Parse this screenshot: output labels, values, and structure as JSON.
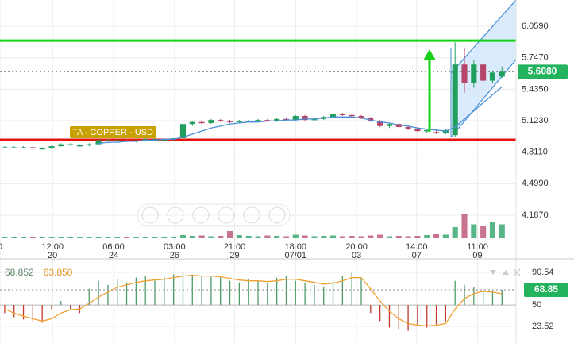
{
  "chart_data": {
    "type": "candlestick",
    "title": "TA - COPPER - USD",
    "title_color": "#c7a100",
    "xlim": [
      -0.5,
      54.5
    ],
    "xticks": [
      {
        "value": -0.5,
        "label": "0"
      },
      {
        "value": 5.1,
        "label": "12:00",
        "sublabel": "20"
      },
      {
        "value": 11.6,
        "label": "06:00",
        "sublabel": "24"
      },
      {
        "value": 18.1,
        "label": "03:00",
        "sublabel": "26"
      },
      {
        "value": 24.5,
        "label": "21:00",
        "sublabel": "29"
      },
      {
        "value": 31,
        "label": "18:00",
        "sublabel": "07/01"
      },
      {
        "value": 37.5,
        "label": "20:00",
        "sublabel": "03"
      },
      {
        "value": 43.9,
        "label": "14:00",
        "sublabel": "07"
      },
      {
        "value": 50.4,
        "label": "11:00",
        "sublabel": "09"
      }
    ],
    "ylim": [
      3.762,
      6.319
    ],
    "yticks": [
      {
        "value": 6.059,
        "label": "6.0590"
      },
      {
        "value": 5.747,
        "label": "5.7470"
      },
      {
        "value": 5.435,
        "label": "5.4350"
      },
      {
        "value": 5.123,
        "label": "5.1230"
      },
      {
        "value": 4.811,
        "label": "4.8110"
      },
      {
        "value": 4.499,
        "label": "4.4990"
      },
      {
        "value": 4.187,
        "label": "4.1870"
      }
    ],
    "grid": true,
    "up_color": "#1f9e5c",
    "down_color": "#b5456a",
    "open": [
      4.86,
      4.86,
      4.86,
      4.86,
      4.85,
      4.85,
      4.87,
      4.89,
      4.88,
      4.88,
      4.89,
      4.93,
      4.93,
      4.93,
      4.92,
      4.93,
      4.94,
      4.94,
      4.94,
      4.95,
      5.09,
      5.11,
      5.1,
      5.13,
      5.12,
      5.11,
      5.12,
      5.12,
      5.13,
      5.12,
      5.14,
      5.13,
      5.17,
      5.13,
      5.14,
      5.16,
      5.19,
      5.18,
      5.17,
      5.15,
      5.12,
      5.07,
      5.09,
      5.06,
      5.04,
      5.02,
      5.01,
      5.0,
      4.98,
      5.68,
      5.5,
      5.68,
      5.52,
      5.56
    ],
    "high": [
      4.87,
      4.87,
      4.87,
      4.87,
      4.86,
      4.88,
      4.9,
      4.9,
      4.89,
      4.9,
      4.94,
      4.94,
      4.94,
      4.94,
      4.93,
      4.95,
      4.95,
      4.95,
      4.95,
      5.11,
      5.12,
      5.13,
      5.14,
      5.14,
      5.13,
      5.13,
      5.13,
      5.14,
      5.14,
      5.15,
      5.15,
      5.18,
      5.18,
      5.15,
      5.17,
      5.2,
      5.2,
      5.19,
      5.18,
      5.16,
      5.13,
      5.1,
      5.1,
      5.08,
      5.06,
      5.04,
      5.03,
      5.04,
      5.9,
      5.85,
      5.72,
      5.7,
      5.62,
      5.66
    ],
    "low": [
      4.85,
      4.85,
      4.85,
      4.84,
      4.84,
      4.84,
      4.87,
      4.88,
      4.87,
      4.87,
      4.89,
      4.92,
      4.92,
      4.91,
      4.91,
      4.92,
      4.93,
      4.93,
      4.93,
      4.94,
      5.07,
      5.09,
      5.09,
      5.11,
      5.1,
      5.1,
      5.11,
      5.11,
      5.11,
      5.11,
      5.12,
      5.12,
      5.12,
      5.12,
      5.13,
      5.15,
      5.17,
      5.16,
      5.14,
      5.11,
      5.06,
      5.05,
      5.05,
      5.03,
      5.01,
      5.0,
      4.99,
      4.99,
      4.96,
      5.4,
      5.45,
      5.5,
      5.5,
      5.55
    ],
    "close": [
      4.86,
      4.86,
      4.86,
      4.85,
      4.85,
      4.87,
      4.89,
      4.89,
      4.88,
      4.89,
      4.93,
      4.93,
      4.93,
      4.92,
      4.93,
      4.94,
      4.94,
      4.94,
      4.95,
      5.09,
      5.11,
      5.1,
      5.13,
      5.12,
      5.11,
      5.12,
      5.12,
      5.13,
      5.12,
      5.14,
      5.13,
      5.17,
      5.13,
      5.14,
      5.16,
      5.19,
      5.18,
      5.17,
      5.15,
      5.12,
      5.07,
      5.09,
      5.06,
      5.04,
      5.02,
      5.03,
      5.0,
      5.03,
      5.68,
      5.5,
      5.68,
      5.52,
      5.6,
      5.608
    ],
    "ma": {
      "color": "#4a90d9",
      "values": [
        null,
        null,
        null,
        null,
        null,
        null,
        null,
        null,
        null,
        null,
        4.9,
        4.91,
        4.91,
        4.92,
        4.92,
        4.93,
        4.93,
        4.94,
        4.94,
        4.96,
        4.99,
        5.02,
        5.05,
        5.07,
        5.09,
        5.1,
        5.11,
        5.11,
        5.12,
        5.12,
        5.13,
        5.13,
        5.14,
        5.14,
        5.15,
        5.16,
        5.16,
        5.16,
        5.15,
        5.13,
        5.11,
        5.1,
        5.08,
        5.07,
        5.05,
        5.04,
        5.03,
        5.02,
        5.06,
        5.14,
        5.22,
        5.3,
        5.38,
        5.46
      ]
    },
    "levels": [
      {
        "value": 5.917,
        "color": "#19d119"
      },
      {
        "value": 4.934,
        "color": "#e8120c"
      }
    ],
    "last_price": {
      "value": 5.608,
      "label": "5.6080",
      "color": "#22b35c"
    },
    "volume": {
      "vlim": [
        0,
        100
      ],
      "values": [
        2,
        2,
        2,
        2,
        2,
        3,
        3,
        2,
        2,
        3,
        4,
        3,
        3,
        3,
        3,
        3,
        4,
        3,
        4,
        8,
        6,
        7,
        5,
        6,
        18,
        8,
        6,
        5,
        7,
        6,
        5,
        9,
        7,
        5,
        6,
        7,
        5,
        6,
        5,
        7,
        9,
        5,
        6,
        5,
        6,
        8,
        10,
        9,
        28,
        60,
        35,
        30,
        40,
        35
      ]
    },
    "indicator": {
      "ylim": [
        2.8,
        100.4
      ],
      "yticks": [
        90.54,
        50,
        23.52
      ],
      "baseline": 50,
      "up_color": "#4d9b6b",
      "down_color": "#c0392b",
      "histogram": [
        40,
        35,
        32,
        30,
        28,
        45,
        55,
        45,
        40,
        70,
        80,
        75,
        82,
        78,
        84,
        86,
        80,
        85,
        88,
        90,
        88,
        86,
        85,
        84,
        80,
        78,
        82,
        80,
        77,
        84,
        86,
        80,
        78,
        75,
        73,
        80,
        86,
        90,
        84,
        40,
        30,
        22,
        20,
        18,
        24,
        22,
        26,
        30,
        80,
        75,
        72,
        70,
        68,
        68.852
      ],
      "signal": {
        "color": "#f0a030",
        "values": [
          45,
          40,
          36,
          33,
          30,
          33,
          40,
          44,
          45,
          52,
          60,
          66,
          72,
          75,
          78,
          80,
          81,
          82,
          84,
          86,
          87,
          86,
          86,
          85,
          83,
          81,
          80,
          80,
          79,
          80,
          82,
          82,
          80,
          78,
          76,
          77,
          80,
          84,
          84,
          70,
          55,
          42,
          33,
          27,
          25,
          24,
          25,
          27,
          45,
          58,
          64,
          67,
          66,
          63.85
        ]
      },
      "legend": [
        {
          "value": 68.852,
          "label": "68.852",
          "color": "#5d8a6c"
        },
        {
          "value": 63.85,
          "label": "63.850",
          "color": "#e0962a"
        }
      ],
      "last": 68.85,
      "last_color": "#22b35c"
    }
  }
}
